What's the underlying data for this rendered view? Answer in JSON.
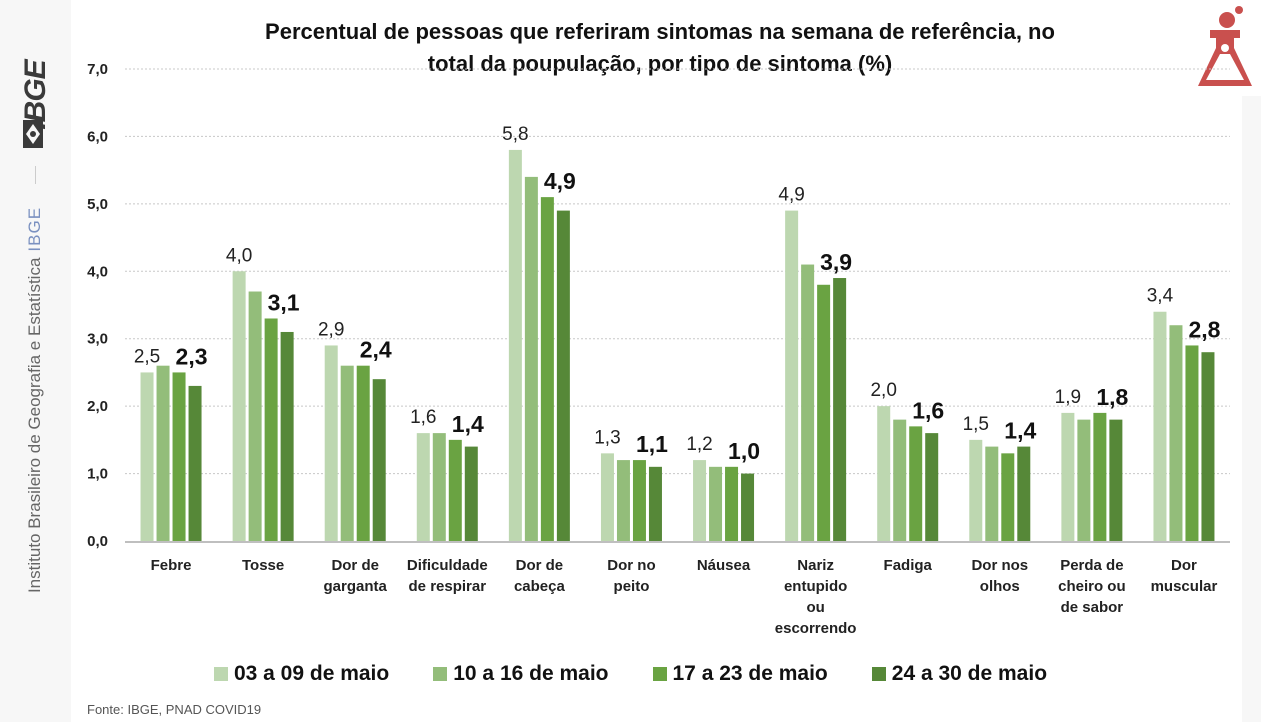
{
  "sidebar": {
    "logo_text": "IBGE",
    "institution": "Instituto Brasileiro de Geografia e Estatística",
    "acronym": "IBGE"
  },
  "header_icon": "flask-icon",
  "footer": {
    "source": "Fonte: IBGE, PNAD COVID19"
  },
  "colors": {
    "series": [
      "#bdd7b0",
      "#93bd7a",
      "#6aa342",
      "#568838"
    ],
    "icon": "#c9504e"
  },
  "chart_data": {
    "type": "bar",
    "title": "Percentual de pessoas que referiram sintomas na semana de referência, no total da poupulação, por tipo de sintoma (%)",
    "title_lines": [
      "Percentual de pessoas que referiram sintomas na semana de referência, no",
      "total da poupulação, por tipo de sintoma (%)"
    ],
    "xlabel": "",
    "ylabel": "",
    "ylim": [
      0,
      7
    ],
    "yticks": [
      "0,0",
      "1,0",
      "2,0",
      "3,0",
      "4,0",
      "5,0",
      "6,0",
      "7,0"
    ],
    "grid": true,
    "legend_position": "bottom",
    "categories": [
      [
        "Febre"
      ],
      [
        "Tosse"
      ],
      [
        "Dor de",
        "garganta"
      ],
      [
        "Dificuldade",
        "de respirar"
      ],
      [
        "Dor de",
        "cabeça"
      ],
      [
        "Dor no",
        "peito"
      ],
      [
        "Náusea"
      ],
      [
        "Nariz",
        "entupido",
        "ou",
        "escorrendo"
      ],
      [
        "Fadiga"
      ],
      [
        "Dor nos",
        "olhos"
      ],
      [
        "Perda de",
        "cheiro ou",
        "de sabor"
      ],
      [
        "Dor",
        "muscular"
      ]
    ],
    "series": [
      {
        "name": "03 a 09 de maio",
        "values": [
          2.5,
          4.0,
          2.9,
          1.6,
          5.8,
          1.3,
          1.2,
          4.9,
          2.0,
          1.5,
          1.9,
          3.4
        ]
      },
      {
        "name": "10 a 16 de maio",
        "values": [
          2.6,
          3.7,
          2.6,
          1.6,
          5.4,
          1.2,
          1.1,
          4.1,
          1.8,
          1.4,
          1.8,
          3.2
        ]
      },
      {
        "name": "17 a 23 de maio",
        "values": [
          2.5,
          3.3,
          2.6,
          1.5,
          5.1,
          1.2,
          1.1,
          3.8,
          1.7,
          1.3,
          1.9,
          2.9
        ]
      },
      {
        "name": "24 a 30 de maio",
        "values": [
          2.3,
          3.1,
          2.4,
          1.4,
          4.9,
          1.1,
          1.0,
          3.9,
          1.6,
          1.4,
          1.8,
          2.8
        ]
      }
    ],
    "data_labels": {
      "first_series": [
        "2,5",
        "4,0",
        "2,9",
        "1,6",
        "5,8",
        "1,3",
        "1,2",
        "4,9",
        "2,0",
        "1,5",
        "1,9",
        "3,4"
      ],
      "last_series": [
        "2,3",
        "3,1",
        "2,4",
        "1,4",
        "4,9",
        "1,1",
        "1,0",
        "3,9",
        "1,6",
        "1,4",
        "1,8",
        "2,8"
      ]
    }
  }
}
